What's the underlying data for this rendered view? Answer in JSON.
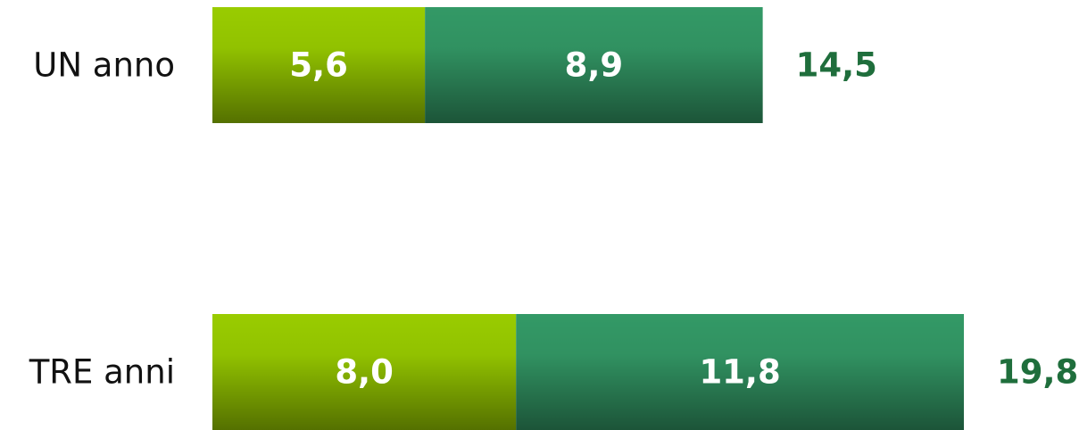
{
  "chart_data": {
    "type": "stacked-bar-horizontal",
    "categories": [
      "UN anno",
      "TRE anni"
    ],
    "series": [
      {
        "color": "#99cc00",
        "values": [
          5.6,
          8.0
        ],
        "value_labels": [
          "5,6",
          "8,0"
        ]
      },
      {
        "color": "#339966",
        "values": [
          8.9,
          11.8
        ],
        "value_labels": [
          "8,9",
          "11,8"
        ]
      }
    ],
    "totals": [
      14.5,
      19.8
    ],
    "total_labels": [
      "14,5",
      "19,8"
    ],
    "total_color": "#1f6e3c"
  }
}
